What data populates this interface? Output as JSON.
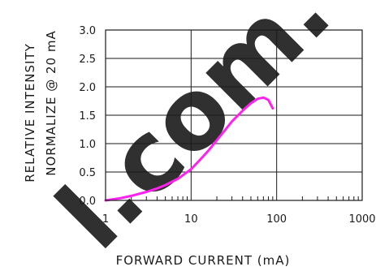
{
  "chart_data": {
    "type": "line",
    "xscale": "log",
    "xlim": [
      1,
      1000
    ],
    "ylim": [
      0,
      3
    ],
    "xticks": [
      1,
      10,
      100,
      1000
    ],
    "xtick_labels": [
      "1",
      "10",
      "100",
      "1000"
    ],
    "yticks": [
      0,
      0.5,
      1,
      1.5,
      2,
      2.5,
      3
    ],
    "ytick_labels": [
      "0.0",
      "0.5",
      "1.0",
      "1.5",
      "2.0",
      "2.5",
      "3.0"
    ],
    "xlabel": "FORWARD CURRENT (mA)",
    "ylabel_line1": "RELATIVE INTENSITY",
    "ylabel_line2": "NORMALIZE @ 20 mA",
    "grid": true,
    "series": [
      {
        "color": "#ff22ee",
        "x": [
          1,
          1.5,
          2,
          3,
          4,
          5,
          7,
          10,
          13,
          16,
          20,
          25,
          30,
          40,
          50,
          60,
          70,
          80,
          90
        ],
        "y": [
          0.0,
          0.04,
          0.08,
          0.15,
          0.21,
          0.27,
          0.38,
          0.55,
          0.73,
          0.88,
          1.06,
          1.24,
          1.39,
          1.58,
          1.71,
          1.79,
          1.81,
          1.77,
          1.62
        ]
      }
    ]
  },
  "watermark": {
    "text": "l.com.",
    "color": "#c8c8c8"
  }
}
